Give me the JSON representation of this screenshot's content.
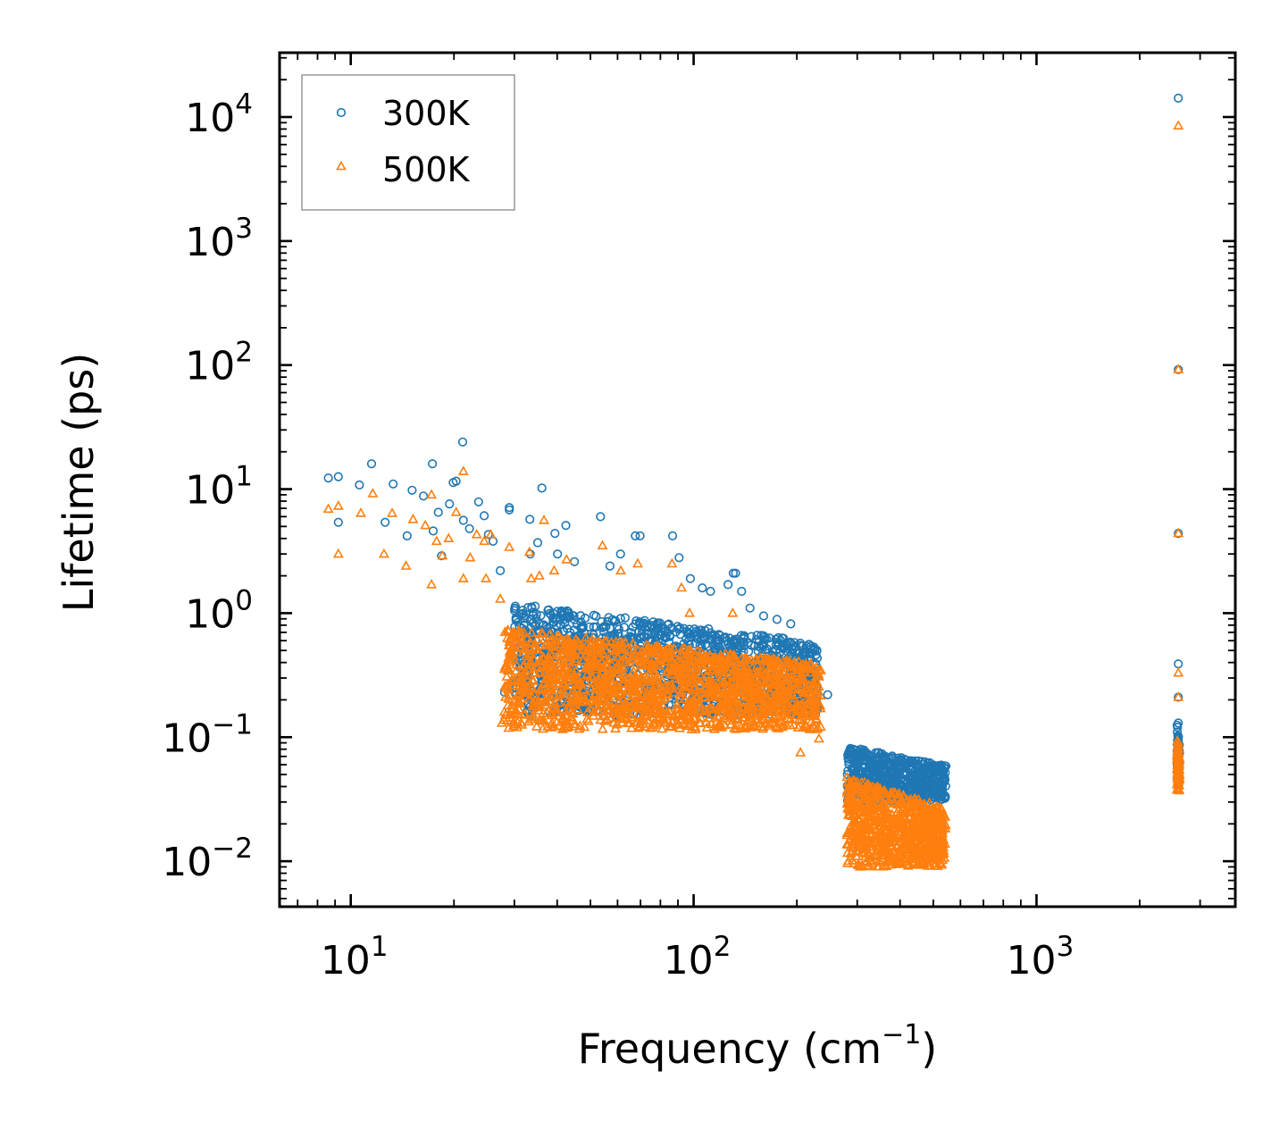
{
  "chart_data": {
    "type": "scatter",
    "title": "",
    "xlabel": "Frequency (cm",
    "xlabel_sup": "−1",
    "xlabel_end": ")",
    "ylabel": "Lifetime (ps)",
    "xscale": "log",
    "yscale": "log",
    "xlim": [
      6.2,
      3800
    ],
    "ylim": [
      0.0043,
      33000
    ],
    "x_ticks": [
      {
        "value": 10,
        "base": "10",
        "exp": "1"
      },
      {
        "value": 100,
        "base": "10",
        "exp": "2"
      },
      {
        "value": 1000,
        "base": "10",
        "exp": "3"
      }
    ],
    "y_ticks": [
      {
        "value": 0.01,
        "base": "10",
        "exp": "−2"
      },
      {
        "value": 0.1,
        "base": "10",
        "exp": "−1"
      },
      {
        "value": 1,
        "base": "10",
        "exp": "0"
      },
      {
        "value": 10,
        "base": "10",
        "exp": "1"
      },
      {
        "value": 100,
        "base": "10",
        "exp": "2"
      },
      {
        "value": 1000,
        "base": "10",
        "exp": "3"
      },
      {
        "value": 10000,
        "base": "10",
        "exp": "4"
      }
    ],
    "legend_position": "top-left",
    "series": [
      {
        "name": "300K",
        "marker": "circle",
        "color": "#1f77b4",
        "points": [
          [
            8.6,
            12.3
          ],
          [
            9.2,
            12.6
          ],
          [
            9.2,
            5.4
          ],
          [
            10.6,
            10.8
          ],
          [
            11.5,
            16.0
          ],
          [
            12.6,
            5.4
          ],
          [
            13.3,
            11.0
          ],
          [
            14.6,
            4.2
          ],
          [
            15.1,
            9.8
          ],
          [
            16.3,
            8.8
          ],
          [
            17.3,
            16.0
          ],
          [
            17.4,
            4.6
          ],
          [
            18.0,
            6.5
          ],
          [
            18.4,
            2.9
          ],
          [
            19.4,
            7.6
          ],
          [
            19.9,
            11.3
          ],
          [
            20.3,
            11.6
          ],
          [
            21.2,
            24.0
          ],
          [
            21.3,
            5.6
          ],
          [
            22.2,
            4.8
          ],
          [
            23.6,
            7.9
          ],
          [
            24.5,
            6.1
          ],
          [
            25.2,
            4.3
          ],
          [
            26.0,
            3.8
          ],
          [
            27.3,
            2.2
          ],
          [
            28.1,
            0.23
          ],
          [
            29.0,
            7.1
          ],
          [
            29.0,
            6.8
          ],
          [
            30.4,
            0.22
          ],
          [
            32.6,
            0.26
          ],
          [
            33.3,
            5.7
          ],
          [
            33.4,
            3.0
          ],
          [
            35.1,
            3.7
          ],
          [
            36.1,
            10.2
          ],
          [
            38.0,
            0.32
          ],
          [
            39.4,
            4.4
          ],
          [
            40.1,
            3.0
          ],
          [
            42.4,
            5.1
          ],
          [
            44.9,
            2.6
          ],
          [
            53.5,
            6.0
          ],
          [
            57.0,
            2.4
          ],
          [
            61.2,
            3.0
          ],
          [
            67.6,
            4.2
          ],
          [
            69.8,
            4.2
          ],
          [
            86.8,
            4.2
          ],
          [
            90.7,
            2.8
          ],
          [
            97.8,
            1.9
          ],
          [
            106.0,
            1.6
          ],
          [
            112.0,
            1.5
          ],
          [
            126.0,
            1.7
          ],
          [
            130.5,
            2.1
          ],
          [
            132.5,
            2.1
          ],
          [
            138.0,
            1.5
          ],
          [
            146.0,
            1.1
          ],
          [
            160.0,
            0.95
          ],
          [
            175.0,
            0.89
          ],
          [
            192.0,
            0.82
          ],
          [
            205.0,
            0.55
          ],
          [
            212.0,
            0.47
          ],
          [
            225.0,
            0.32
          ],
          [
            246.0,
            0.22
          ],
          [
            2591,
            14200
          ],
          [
            2591,
            92
          ],
          [
            2591,
            4.4
          ],
          [
            2591,
            0.39
          ],
          [
            2591,
            0.21
          ],
          [
            2591,
            0.13
          ],
          [
            2591,
            0.09
          ]
        ],
        "clusters": [
          {
            "x": [
              30,
              230
            ],
            "y": [
              0.15,
              1.2
            ],
            "count": 1400
          },
          {
            "x": [
              280,
              545
            ],
            "y": [
              0.03,
              0.085
            ],
            "count": 650
          },
          {
            "x": [
              2570,
              2612
            ],
            "y": [
              0.045,
              0.13
            ],
            "count": 70
          }
        ]
      },
      {
        "name": "500K",
        "marker": "triangle",
        "color": "#ff7f0e",
        "points": [
          [
            8.6,
            6.9
          ],
          [
            9.2,
            3.0
          ],
          [
            9.2,
            7.3
          ],
          [
            10.7,
            6.4
          ],
          [
            11.6,
            9.2
          ],
          [
            12.5,
            3.0
          ],
          [
            13.2,
            6.4
          ],
          [
            14.5,
            2.4
          ],
          [
            15.2,
            5.7
          ],
          [
            16.5,
            5.1
          ],
          [
            17.2,
            1.7
          ],
          [
            17.2,
            9.0
          ],
          [
            17.8,
            3.8
          ],
          [
            18.5,
            2.9
          ],
          [
            19.3,
            4.0
          ],
          [
            20.3,
            6.5
          ],
          [
            21.3,
            13.9
          ],
          [
            21.3,
            1.9
          ],
          [
            22.3,
            2.8
          ],
          [
            23.3,
            4.3
          ],
          [
            24.5,
            3.8
          ],
          [
            24.8,
            1.9
          ],
          [
            25.6,
            4.3
          ],
          [
            27.3,
            1.3
          ],
          [
            27.6,
            0.13
          ],
          [
            29.0,
            3.4
          ],
          [
            30.6,
            0.12
          ],
          [
            33.2,
            3.1
          ],
          [
            33.6,
            1.9
          ],
          [
            35.5,
            2.0
          ],
          [
            36.6,
            5.6
          ],
          [
            39.2,
            2.2
          ],
          [
            42.6,
            2.7
          ],
          [
            54.2,
            3.5
          ],
          [
            61.3,
            2.2
          ],
          [
            68.7,
            2.5
          ],
          [
            86.5,
            2.5
          ],
          [
            92.2,
            1.6
          ],
          [
            97.3,
            1.0
          ],
          [
            130.0,
            1.0
          ],
          [
            205.0,
            0.075
          ],
          [
            232.0,
            0.097
          ],
          [
            2591,
            8500
          ],
          [
            2591,
            92
          ],
          [
            2591,
            4.4
          ],
          [
            2591,
            0.33
          ],
          [
            2591,
            0.21
          ],
          [
            2591,
            0.09
          ],
          [
            2591,
            0.042
          ]
        ],
        "clusters": [
          {
            "x": [
              28,
              235
            ],
            "y": [
              0.115,
              0.75
            ],
            "count": 1600
          },
          {
            "x": [
              280,
              545
            ],
            "y": [
              0.009,
              0.048
            ],
            "count": 800
          },
          {
            "x": [
              2570,
              2612
            ],
            "y": [
              0.036,
              0.1
            ],
            "count": 80
          }
        ]
      }
    ]
  }
}
